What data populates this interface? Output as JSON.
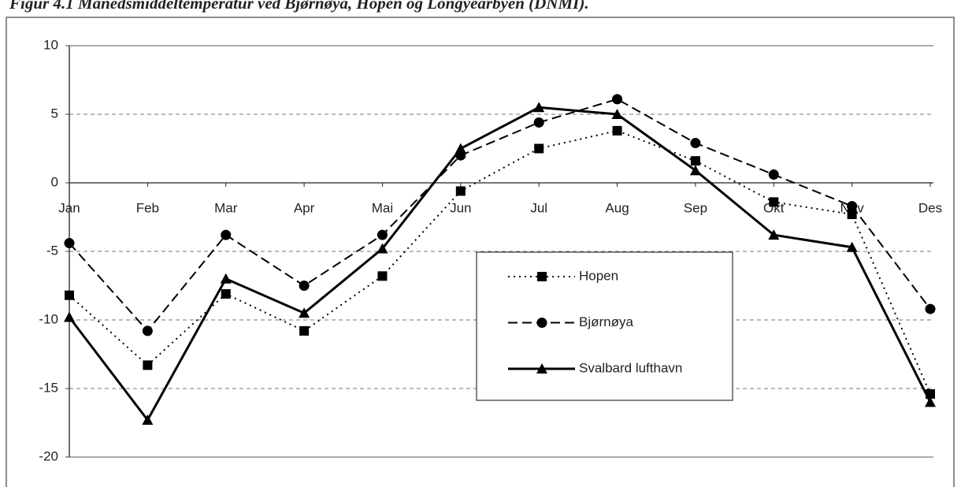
{
  "chart_data": {
    "type": "line",
    "title": "Figur 4.1 Månedsmiddeltemperatur ved Bjørnøya, Hopen og Longyearbyen (DNMI).",
    "categories": [
      "Jan",
      "Feb",
      "Mar",
      "Apr",
      "Mai",
      "Jun",
      "Jul",
      "Aug",
      "Sep",
      "Okt",
      "Nov",
      "Des"
    ],
    "series": [
      {
        "name": "Hopen",
        "color": "#000000",
        "dash": "dotted",
        "marker": "square",
        "values": [
          -8.2,
          -13.3,
          -8.1,
          -10.8,
          -6.8,
          -0.6,
          2.5,
          3.8,
          1.6,
          -1.4,
          -2.3,
          -15.4
        ]
      },
      {
        "name": "Bjørnøya",
        "color": "#000000",
        "dash": "dashed",
        "marker": "circle",
        "values": [
          -4.4,
          -10.8,
          -3.8,
          -7.5,
          -3.8,
          2.0,
          4.4,
          6.1,
          2.9,
          0.6,
          -1.7,
          -9.2
        ]
      },
      {
        "name": "Svalbard lufthavn",
        "color": "#000000",
        "dash": "solid",
        "marker": "triangle",
        "values": [
          -9.8,
          -17.3,
          -7.0,
          -9.5,
          -4.8,
          2.5,
          5.5,
          5.0,
          0.9,
          -3.8,
          -4.7,
          -16.0
        ]
      }
    ],
    "ylim": [
      -20,
      10
    ],
    "yticks": [
      -20,
      -15,
      -10,
      -5,
      0,
      5,
      10
    ],
    "grid": true,
    "legend": "center"
  }
}
